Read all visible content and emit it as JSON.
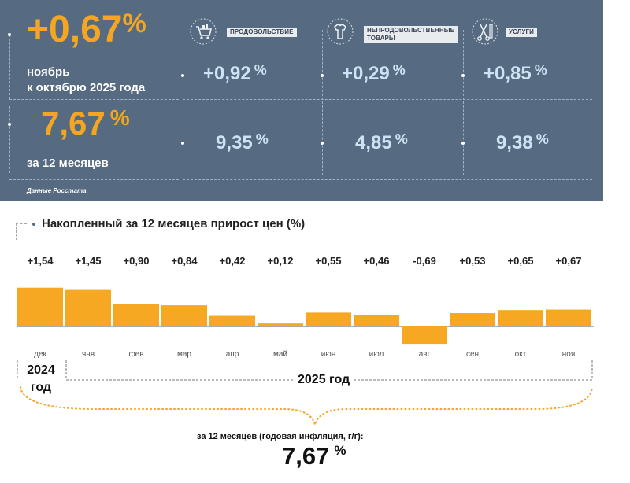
{
  "headline": {
    "monthly_value": "+0,67",
    "monthly_pct": "%",
    "monthly_label_1": "ноябрь",
    "monthly_label_2": "к октябрю 2025 года",
    "annual_value": "7,67",
    "annual_pct": "%",
    "annual_label": "за 12 месяцев",
    "source": "Данные Росстата"
  },
  "categories": [
    {
      "name": "ПРОДОВОЛЬСТВИЕ",
      "icon": "shopping-cart-icon",
      "monthly": "+0,92",
      "annual": "9,35",
      "pct": "%"
    },
    {
      "name": "НЕПРОДОВОЛЬСТВЕННЫЕ ТОВАРЫ",
      "icon": "clothing-icon",
      "monthly": "+0,29",
      "annual": "4,85",
      "pct": "%"
    },
    {
      "name": "УСЛУГИ",
      "icon": "scissors-comb-icon",
      "monthly": "+0,85",
      "annual": "9,38",
      "pct": "%"
    }
  ],
  "chart_data": {
    "type": "bar",
    "title": "Накопленный за 12 месяцев прирост цен (%)",
    "categories": [
      "дек",
      "янв",
      "фев",
      "мар",
      "апр",
      "май",
      "июн",
      "июл",
      "авг",
      "сен",
      "окт",
      "ноя"
    ],
    "values": [
      1.54,
      1.45,
      0.9,
      0.84,
      0.42,
      0.12,
      0.55,
      0.46,
      -0.69,
      0.53,
      0.65,
      0.67
    ],
    "value_labels": [
      "+1,54",
      "+1,45",
      "+0,90",
      "+0,84",
      "+0,42",
      "+0,12",
      "+0,55",
      "+0,46",
      "-0,69",
      "+0,53",
      "+0,65",
      "+0,67"
    ],
    "bar_color": "#f7a823",
    "year_2024": "2024",
    "year_2024_suffix": "год",
    "year_2025": "2025 год",
    "footer_label": "за 12 месяцев (годовая инфляция, г/г):",
    "footer_value": "7,67",
    "footer_pct": "%"
  },
  "colors": {
    "panel": "#566b82",
    "orange": "#f4a623",
    "light_blue": "#cfe2f3"
  }
}
